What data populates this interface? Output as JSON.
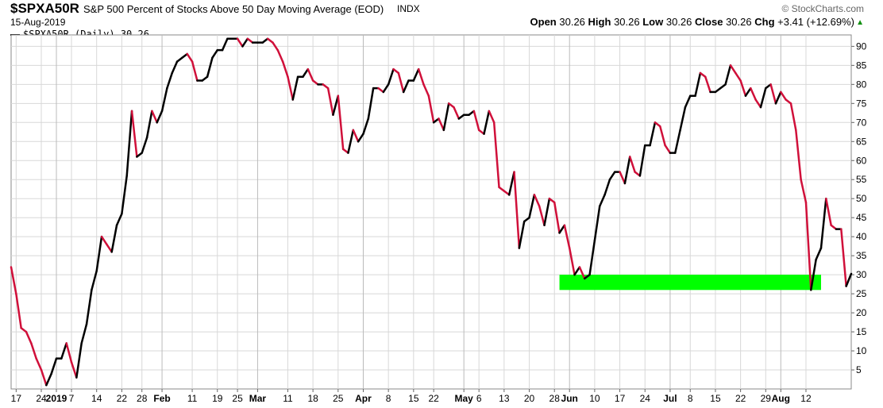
{
  "header": {
    "symbol": "$SPXA50R",
    "name": "S&P 500 Percent of Stocks Above 50 Day Moving Average (EOD)",
    "exchange": "INDX",
    "copyright": "© StockCharts.com",
    "date": "15-Aug-2019",
    "open_label": "Open",
    "open": "30.26",
    "high_label": "High",
    "high": "30.26",
    "low_label": "Low",
    "low": "30.26",
    "close_label": "Close",
    "close": "30.26",
    "chg_label": "Chg",
    "chg": "+3.41 (+12.69%)",
    "chg_arrow": "▲",
    "legend": "$SPXA50R (Daily) 30.26"
  },
  "colors": {
    "up": "#000000",
    "down": "#d0103a",
    "band": "#00ff00",
    "grid": "#d8d8d8"
  },
  "chart_data": {
    "type": "line",
    "title": "S&P 500 Percent of Stocks Above 50 Day Moving Average (EOD)",
    "ylim": [
      0,
      93
    ],
    "yticks": [
      5,
      10,
      15,
      20,
      25,
      30,
      35,
      40,
      45,
      50,
      55,
      60,
      65,
      70,
      75,
      80,
      85,
      90
    ],
    "xtick_labels": [
      {
        "i": 1,
        "label": "17",
        "bold": false
      },
      {
        "i": 6,
        "label": "24",
        "bold": false
      },
      {
        "i": 9,
        "label": "2019",
        "bold": true
      },
      {
        "i": 12,
        "label": "7",
        "bold": false
      },
      {
        "i": 17,
        "label": "14",
        "bold": false
      },
      {
        "i": 22,
        "label": "22",
        "bold": false
      },
      {
        "i": 26,
        "label": "28",
        "bold": false
      },
      {
        "i": 30,
        "label": "Feb",
        "bold": true
      },
      {
        "i": 36,
        "label": "11",
        "bold": false
      },
      {
        "i": 41,
        "label": "19",
        "bold": false
      },
      {
        "i": 45,
        "label": "25",
        "bold": false
      },
      {
        "i": 49,
        "label": "Mar",
        "bold": true
      },
      {
        "i": 55,
        "label": "11",
        "bold": false
      },
      {
        "i": 60,
        "label": "18",
        "bold": false
      },
      {
        "i": 65,
        "label": "25",
        "bold": false
      },
      {
        "i": 70,
        "label": "Apr",
        "bold": true
      },
      {
        "i": 75,
        "label": "8",
        "bold": false
      },
      {
        "i": 80,
        "label": "15",
        "bold": false
      },
      {
        "i": 84,
        "label": "22",
        "bold": false
      },
      {
        "i": 90,
        "label": "May",
        "bold": true
      },
      {
        "i": 93,
        "label": "6",
        "bold": false
      },
      {
        "i": 98,
        "label": "13",
        "bold": false
      },
      {
        "i": 103,
        "label": "20",
        "bold": false
      },
      {
        "i": 108,
        "label": "28",
        "bold": false
      },
      {
        "i": 111,
        "label": "Jun",
        "bold": true
      },
      {
        "i": 116,
        "label": "10",
        "bold": false
      },
      {
        "i": 121,
        "label": "17",
        "bold": false
      },
      {
        "i": 126,
        "label": "24",
        "bold": false
      },
      {
        "i": 131,
        "label": "Jul",
        "bold": true
      },
      {
        "i": 135,
        "label": "8",
        "bold": false
      },
      {
        "i": 140,
        "label": "15",
        "bold": false
      },
      {
        "i": 145,
        "label": "22",
        "bold": false
      },
      {
        "i": 150,
        "label": "29",
        "bold": false
      },
      {
        "i": 153,
        "label": "Aug",
        "bold": true
      },
      {
        "i": 158,
        "label": "12",
        "bold": false
      }
    ],
    "series": [
      {
        "values": [
          32,
          25,
          16,
          15,
          12,
          8,
          5,
          1,
          4,
          8,
          8,
          12,
          7,
          3,
          12,
          17,
          26,
          31,
          40,
          38,
          36,
          43,
          46,
          56,
          73,
          61,
          62,
          66,
          73,
          70,
          73,
          79,
          83,
          86,
          87,
          88,
          86,
          81,
          81,
          82,
          87,
          89,
          89,
          92,
          92,
          92,
          90,
          92,
          91,
          91,
          91,
          92,
          91,
          89,
          86,
          82,
          76,
          82,
          82,
          84,
          81,
          80,
          80,
          79,
          72,
          77,
          63,
          62,
          68,
          65,
          67,
          71,
          79,
          79,
          78,
          80,
          84,
          83,
          78,
          81,
          81,
          84,
          80,
          77,
          70,
          71,
          68,
          75,
          74,
          71,
          72,
          72,
          73,
          68,
          67,
          73,
          70,
          53,
          52,
          51,
          57,
          37,
          44,
          45,
          51,
          48,
          43,
          50,
          49,
          41,
          43,
          37,
          30,
          32,
          29,
          30,
          39,
          48,
          51,
          55,
          57,
          57,
          54,
          61,
          57,
          56,
          64,
          64,
          70,
          69,
          64,
          62,
          62,
          68,
          74,
          77,
          77,
          83,
          82,
          78,
          78,
          79,
          80,
          85,
          83,
          81,
          77,
          79,
          76,
          74,
          79,
          80,
          75,
          78,
          76,
          75,
          68,
          55,
          49,
          26,
          34,
          37,
          50,
          43,
          42,
          42,
          27,
          30.26
        ]
      }
    ],
    "band": {
      "from": 26,
      "to": 30,
      "start_i": 109,
      "end_i": 161
    }
  }
}
